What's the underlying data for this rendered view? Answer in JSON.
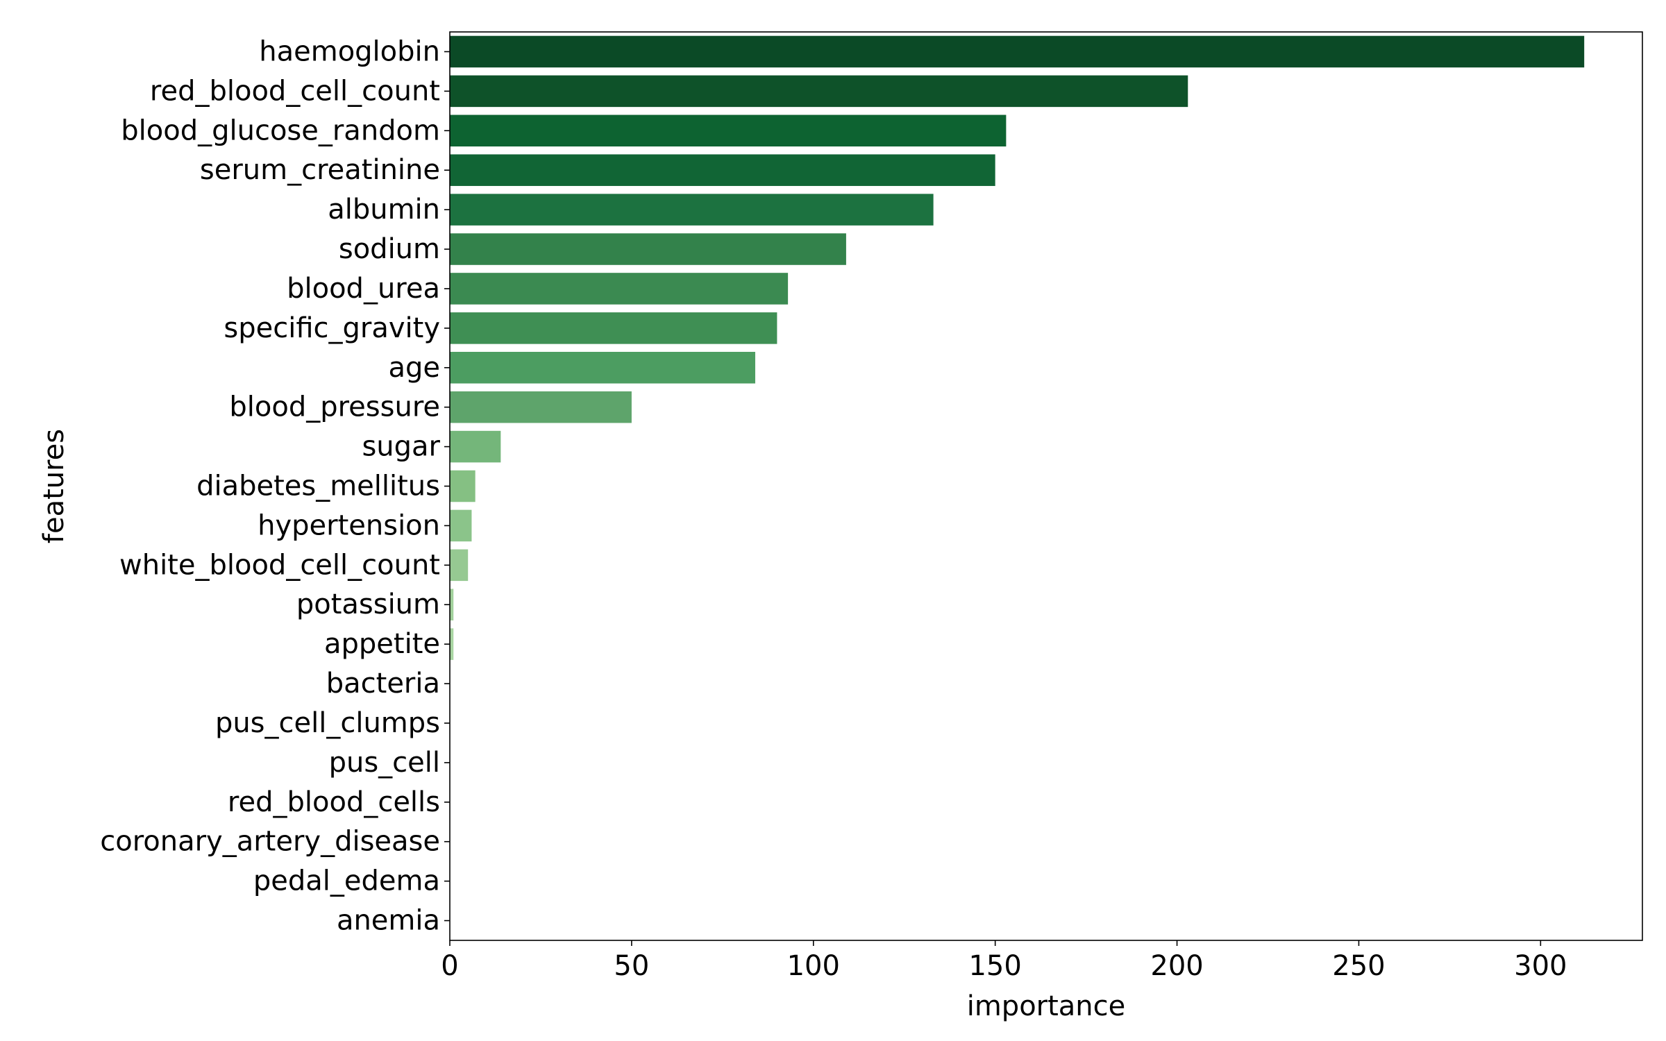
{
  "chart_data": {
    "type": "bar",
    "orientation": "horizontal",
    "title": "",
    "xlabel": "importance",
    "ylabel": "features",
    "xlim": [
      0,
      328
    ],
    "xticks": [
      0,
      50,
      100,
      150,
      200,
      250,
      300
    ],
    "grid": false,
    "categories": [
      "haemoglobin",
      "red_blood_cell_count",
      "blood_glucose_random",
      "serum_creatinine",
      "albumin",
      "sodium",
      "blood_urea",
      "specific_gravity",
      "age",
      "blood_pressure",
      "sugar",
      "diabetes_mellitus",
      "hypertension",
      "white_blood_cell_count",
      "potassium",
      "appetite",
      "bacteria",
      "pus_cell_clumps",
      "pus_cell",
      "red_blood_cells",
      "coronary_artery_disease",
      "pedal_edema",
      "anemia"
    ],
    "values": [
      312,
      203,
      153,
      150,
      133,
      109,
      93,
      90,
      84,
      50,
      14,
      7,
      6,
      5,
      1,
      1,
      0,
      0,
      0,
      0,
      0,
      0,
      0
    ],
    "colors": [
      "#0b4a26",
      "#0e5229",
      "#0d6331",
      "#116535",
      "#1c7240",
      "#33824b",
      "#3b8a51",
      "#3f8f54",
      "#4c9d61",
      "#5ea46b",
      "#74b67a",
      "#85c083",
      "#8bc48a",
      "#96c992",
      "#a2d19c",
      "#a9d5a2",
      "#b3dbaa",
      "#bde0b4",
      "#c6e5bd",
      "#cfe9c6",
      "#d7edcf",
      "#e0f1d9",
      "#e8f5e2"
    ]
  }
}
